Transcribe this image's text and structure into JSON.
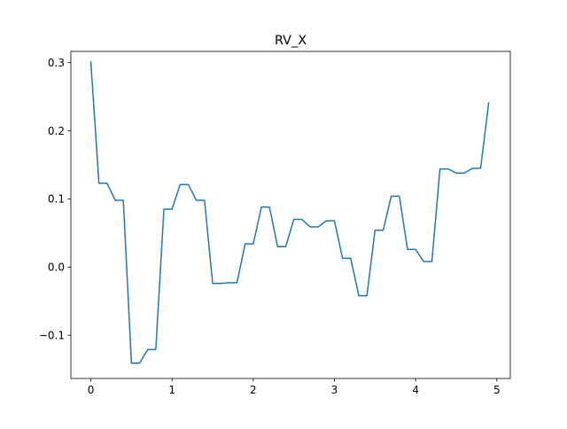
{
  "chart_data": {
    "type": "line",
    "title": "RV_X",
    "xlabel": "",
    "ylabel": "",
    "xlim": [
      -0.246,
      5.166
    ],
    "ylim": [
      -0.1635,
      0.3165
    ],
    "xticks": [
      0,
      1,
      2,
      3,
      4,
      5
    ],
    "xtick_labels": [
      "0",
      "1",
      "2",
      "3",
      "4",
      "5"
    ],
    "yticks": [
      -0.1,
      0.0,
      0.1,
      0.2,
      0.3
    ],
    "ytick_labels": [
      "−0.1",
      "0.0",
      "0.1",
      "0.2",
      "0.3"
    ],
    "grid": false,
    "legend": "none",
    "series": [
      {
        "color": "#1f77b4",
        "x": [
          0,
          0.1,
          0.2,
          0.3,
          0.4,
          0.5,
          0.6,
          0.7,
          0.8,
          0.9,
          1.0,
          1.1,
          1.2,
          1.3,
          1.4,
          1.5,
          1.6,
          1.7,
          1.8,
          1.9,
          2.0,
          2.1,
          2.2,
          2.3,
          2.4,
          2.5,
          2.6,
          2.7,
          2.8,
          2.9,
          3.0,
          3.1,
          3.2,
          3.3,
          3.4,
          3.5,
          3.6,
          3.7,
          3.8,
          3.9,
          4.0,
          4.1,
          4.2,
          4.3,
          4.4,
          4.5,
          4.6,
          4.7,
          4.8,
          4.9
        ],
        "y": [
          0.301,
          0.123,
          0.123,
          0.098,
          0.098,
          -0.141,
          -0.141,
          -0.121,
          -0.121,
          0.085,
          0.085,
          0.121,
          0.121,
          0.098,
          0.098,
          -0.024,
          -0.024,
          -0.023,
          -0.023,
          0.034,
          0.034,
          0.088,
          0.088,
          0.03,
          0.03,
          0.07,
          0.07,
          0.059,
          0.059,
          0.068,
          0.068,
          0.013,
          0.013,
          -0.042,
          -0.042,
          0.054,
          0.054,
          0.104,
          0.104,
          0.026,
          0.026,
          0.008,
          0.008,
          0.144,
          0.144,
          0.138,
          0.138,
          0.145,
          0.145,
          0.241
        ]
      }
    ]
  }
}
